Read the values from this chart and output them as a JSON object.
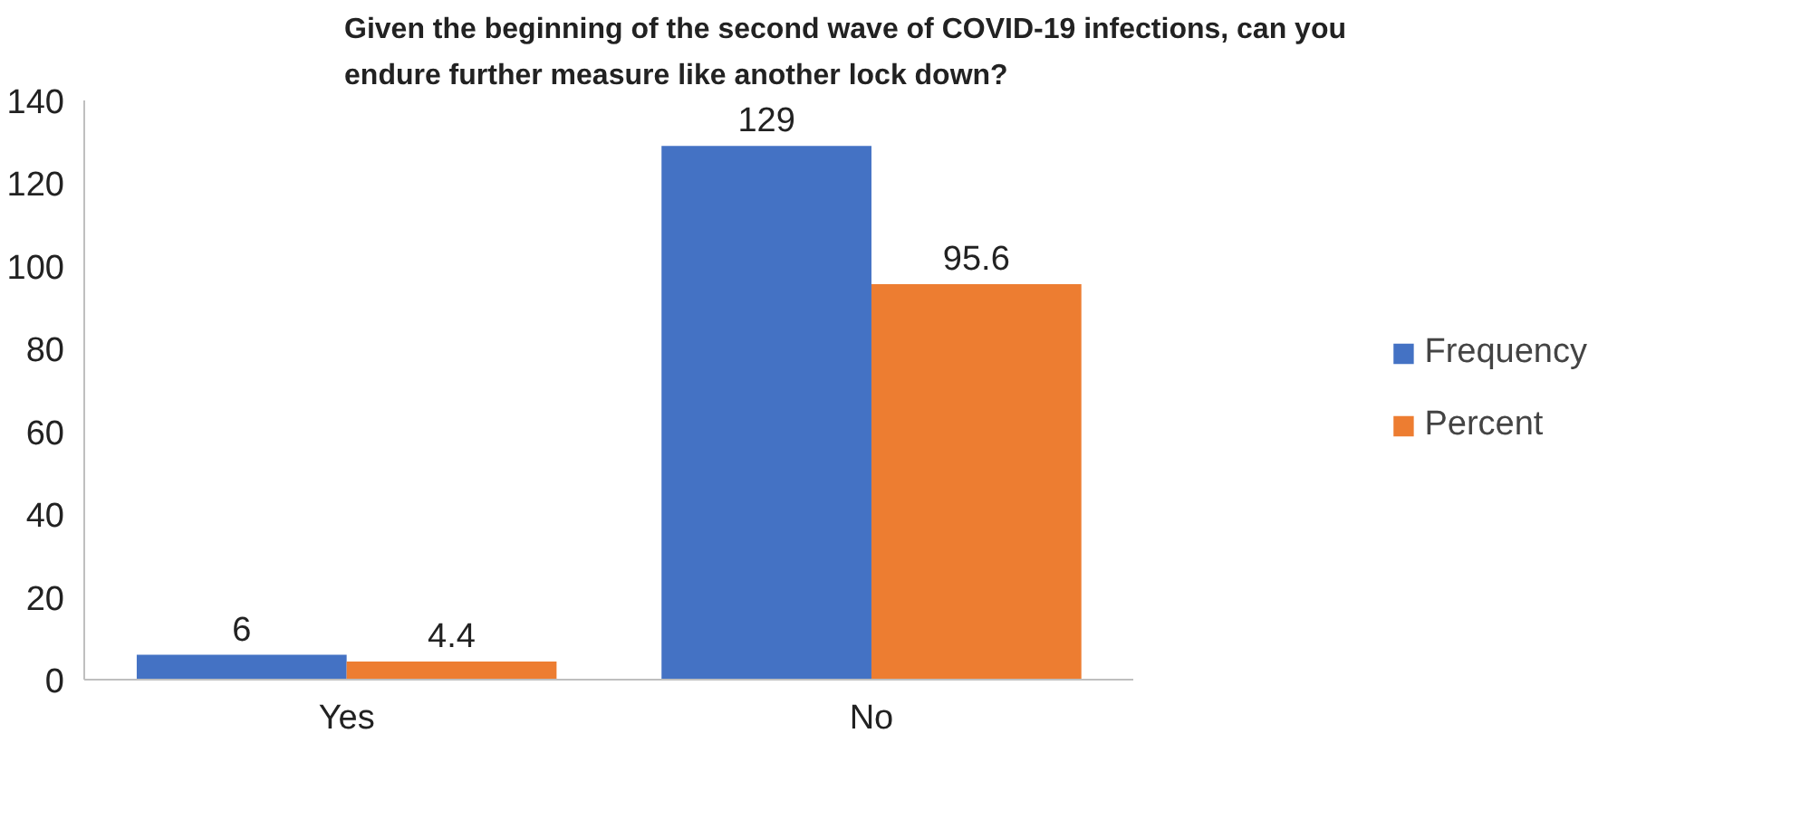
{
  "chart_data": {
    "type": "bar",
    "title": "Given the beginning of the second wave of COVID-19 infections, can you endure further measure like another lock down?",
    "categories": [
      "Yes",
      "No"
    ],
    "series": [
      {
        "name": "Frequency",
        "color": "#4472c4",
        "values": [
          6,
          129
        ]
      },
      {
        "name": "Percent",
        "color": "#ed7d31",
        "values": [
          4.4,
          95.6
        ]
      }
    ],
    "ylim": [
      0,
      140
    ],
    "yticks": [
      0,
      20,
      40,
      60,
      80,
      100,
      120,
      140
    ],
    "grid": false,
    "legend": "right",
    "data_labels": true
  }
}
